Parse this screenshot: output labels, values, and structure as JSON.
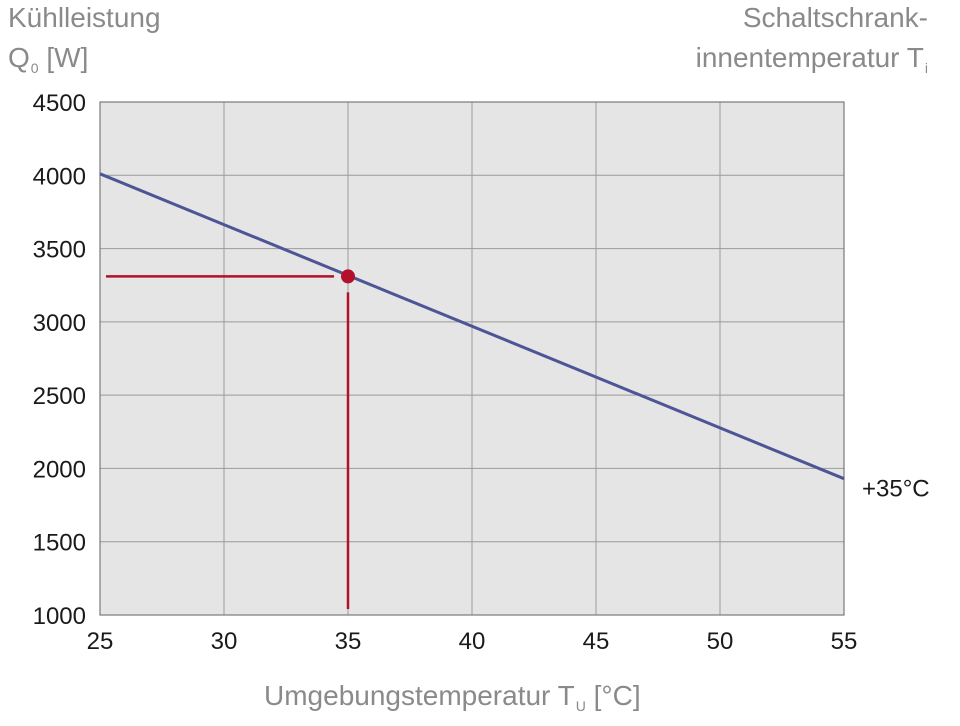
{
  "chart_data": {
    "type": "line",
    "ylabel_line1": "Kühlleistung",
    "ylabel_line2_main": "Q",
    "ylabel_line2_sub": "0",
    "ylabel_line2_unit": " [W]",
    "right_label_line1": "Schaltschrank-",
    "right_label_line2_main": "innentemperatur T",
    "right_label_line2_sub": "i",
    "xlabel_main": "Umgebungstemperatur T",
    "xlabel_sub": "U",
    "xlabel_unit": " [°C]",
    "xlim": [
      25,
      55
    ],
    "ylim": [
      1000,
      4500
    ],
    "xticks": [
      25,
      30,
      35,
      40,
      45,
      50,
      55
    ],
    "yticks": [
      1000,
      1500,
      2000,
      2500,
      3000,
      3500,
      4000,
      4500
    ],
    "grid": true,
    "series": [
      {
        "name": "+35°C",
        "x": [
          25,
          55
        ],
        "y": [
          4010,
          1930
        ],
        "color": "#4d5596"
      }
    ],
    "marker": {
      "x": 35,
      "y": 3310,
      "color": "#b5102a"
    },
    "colors": {
      "plot_bg": "#e5e5e5",
      "grid": "#9a9a9a",
      "guide": "#b5102a"
    }
  }
}
